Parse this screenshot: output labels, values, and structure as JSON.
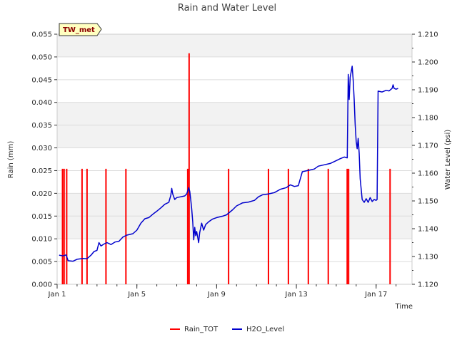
{
  "chart_data": {
    "type": "line",
    "title": "Rain and Water Level",
    "badge": "TW_met",
    "xlabel": "Time",
    "ylabel_left": "Rain (mm)",
    "ylabel_right": "Water Level (psi)",
    "xlim": [
      1.0,
      18.8
    ],
    "ylim_left": [
      0.0,
      0.055
    ],
    "ylim_right": [
      1.12,
      1.21
    ],
    "x_ticks": [
      {
        "value": 1,
        "label": "Jan 1"
      },
      {
        "value": 5,
        "label": "Jan 5"
      },
      {
        "value": 9,
        "label": "Jan 9"
      },
      {
        "value": 13,
        "label": "Jan 13"
      },
      {
        "value": 17,
        "label": "Jan 17"
      }
    ],
    "y_left_ticks": [
      "0.000",
      "0.005",
      "0.010",
      "0.015",
      "0.020",
      "0.025",
      "0.030",
      "0.035",
      "0.040",
      "0.045",
      "0.050",
      "0.055"
    ],
    "y_right_ticks": [
      "1.120",
      "1.130",
      "1.140",
      "1.150",
      "1.160",
      "1.170",
      "1.180",
      "1.190",
      "1.200",
      "1.210"
    ],
    "background": "alternating grey horizontal bands",
    "legend": [
      {
        "name": "Rain_TOT",
        "color": "#ff0000"
      },
      {
        "name": "H2O_Level",
        "color": "#0000cc"
      }
    ],
    "series": [
      {
        "name": "Rain_TOT",
        "axis": "left",
        "style": "spikes",
        "color": "#ff0000",
        "points": [
          [
            1.27,
            0.0254
          ],
          [
            1.35,
            0.0254
          ],
          [
            1.48,
            0.0254
          ],
          [
            2.25,
            0.0254
          ],
          [
            2.5,
            0.0254
          ],
          [
            3.45,
            0.0254
          ],
          [
            4.45,
            0.0254
          ],
          [
            7.55,
            0.0254
          ],
          [
            7.62,
            0.0508
          ],
          [
            9.6,
            0.0254
          ],
          [
            11.6,
            0.0254
          ],
          [
            12.6,
            0.0254
          ],
          [
            13.6,
            0.0254
          ],
          [
            14.6,
            0.0254
          ],
          [
            15.55,
            0.0254
          ],
          [
            15.62,
            0.0254
          ],
          [
            17.7,
            0.0254
          ]
        ]
      },
      {
        "name": "H2O_Level",
        "axis": "right",
        "style": "line",
        "color": "#0000cc",
        "points": [
          [
            1.1,
            1.1305
          ],
          [
            1.3,
            1.1302
          ],
          [
            1.45,
            1.1306
          ],
          [
            1.55,
            1.1285
          ],
          [
            1.8,
            1.1283
          ],
          [
            2.0,
            1.129
          ],
          [
            2.3,
            1.1293
          ],
          [
            2.5,
            1.1292
          ],
          [
            2.7,
            1.1305
          ],
          [
            2.85,
            1.1318
          ],
          [
            3.0,
            1.1322
          ],
          [
            3.1,
            1.135
          ],
          [
            3.2,
            1.1338
          ],
          [
            3.35,
            1.1345
          ],
          [
            3.5,
            1.135
          ],
          [
            3.7,
            1.1343
          ],
          [
            3.9,
            1.1352
          ],
          [
            4.1,
            1.1355
          ],
          [
            4.3,
            1.137
          ],
          [
            4.5,
            1.1377
          ],
          [
            4.8,
            1.1382
          ],
          [
            5.0,
            1.1395
          ],
          [
            5.2,
            1.142
          ],
          [
            5.4,
            1.1436
          ],
          [
            5.6,
            1.144
          ],
          [
            5.8,
            1.1452
          ],
          [
            6.0,
            1.1463
          ],
          [
            6.2,
            1.1475
          ],
          [
            6.4,
            1.1488
          ],
          [
            6.6,
            1.1495
          ],
          [
            6.7,
            1.152
          ],
          [
            6.75,
            1.1545
          ],
          [
            6.8,
            1.1525
          ],
          [
            6.9,
            1.1505
          ],
          [
            7.0,
            1.1512
          ],
          [
            7.2,
            1.1515
          ],
          [
            7.4,
            1.1518
          ],
          [
            7.5,
            1.1525
          ],
          [
            7.6,
            1.1548
          ],
          [
            7.65,
            1.1535
          ],
          [
            7.7,
            1.1505
          ],
          [
            7.75,
            1.147
          ],
          [
            7.8,
            1.1425
          ],
          [
            7.85,
            1.136
          ],
          [
            7.9,
            1.1405
          ],
          [
            7.95,
            1.1375
          ],
          [
            8.0,
            1.139
          ],
          [
            8.1,
            1.135
          ],
          [
            8.15,
            1.1385
          ],
          [
            8.25,
            1.142
          ],
          [
            8.35,
            1.1395
          ],
          [
            8.45,
            1.1415
          ],
          [
            8.6,
            1.1425
          ],
          [
            8.8,
            1.1435
          ],
          [
            9.0,
            1.144
          ],
          [
            9.3,
            1.1445
          ],
          [
            9.5,
            1.145
          ],
          [
            9.8,
            1.1468
          ],
          [
            10.0,
            1.1482
          ],
          [
            10.3,
            1.1493
          ],
          [
            10.6,
            1.1496
          ],
          [
            10.9,
            1.1502
          ],
          [
            11.1,
            1.1515
          ],
          [
            11.3,
            1.1522
          ],
          [
            11.6,
            1.1525
          ],
          [
            11.9,
            1.153
          ],
          [
            12.2,
            1.1542
          ],
          [
            12.5,
            1.1548
          ],
          [
            12.7,
            1.1558
          ],
          [
            12.9,
            1.1552
          ],
          [
            13.1,
            1.1555
          ],
          [
            13.3,
            1.1605
          ],
          [
            13.6,
            1.161
          ],
          [
            13.9,
            1.1615
          ],
          [
            14.1,
            1.1625
          ],
          [
            14.4,
            1.163
          ],
          [
            14.7,
            1.1635
          ],
          [
            15.0,
            1.1645
          ],
          [
            15.2,
            1.1652
          ],
          [
            15.4,
            1.1658
          ],
          [
            15.55,
            1.1655
          ],
          [
            15.6,
            1.1955
          ],
          [
            15.65,
            1.1865
          ],
          [
            15.7,
            1.1945
          ],
          [
            15.8,
            1.1985
          ],
          [
            15.85,
            1.1935
          ],
          [
            15.9,
            1.1865
          ],
          [
            15.95,
            1.1775
          ],
          [
            16.0,
            1.1715
          ],
          [
            16.05,
            1.1688
          ],
          [
            16.1,
            1.1725
          ],
          [
            16.15,
            1.1672
          ],
          [
            16.2,
            1.158
          ],
          [
            16.3,
            1.1505
          ],
          [
            16.4,
            1.1495
          ],
          [
            16.5,
            1.1508
          ],
          [
            16.6,
            1.1495
          ],
          [
            16.7,
            1.1512
          ],
          [
            16.8,
            1.1498
          ],
          [
            16.9,
            1.1505
          ],
          [
            17.0,
            1.1502
          ],
          [
            17.05,
            1.1505
          ],
          [
            17.1,
            1.1895
          ],
          [
            17.3,
            1.1892
          ],
          [
            17.5,
            1.1898
          ],
          [
            17.65,
            1.1896
          ],
          [
            17.8,
            1.1905
          ],
          [
            17.85,
            1.1918
          ],
          [
            17.9,
            1.1905
          ],
          [
            18.0,
            1.1902
          ],
          [
            18.1,
            1.1905
          ]
        ]
      }
    ]
  }
}
